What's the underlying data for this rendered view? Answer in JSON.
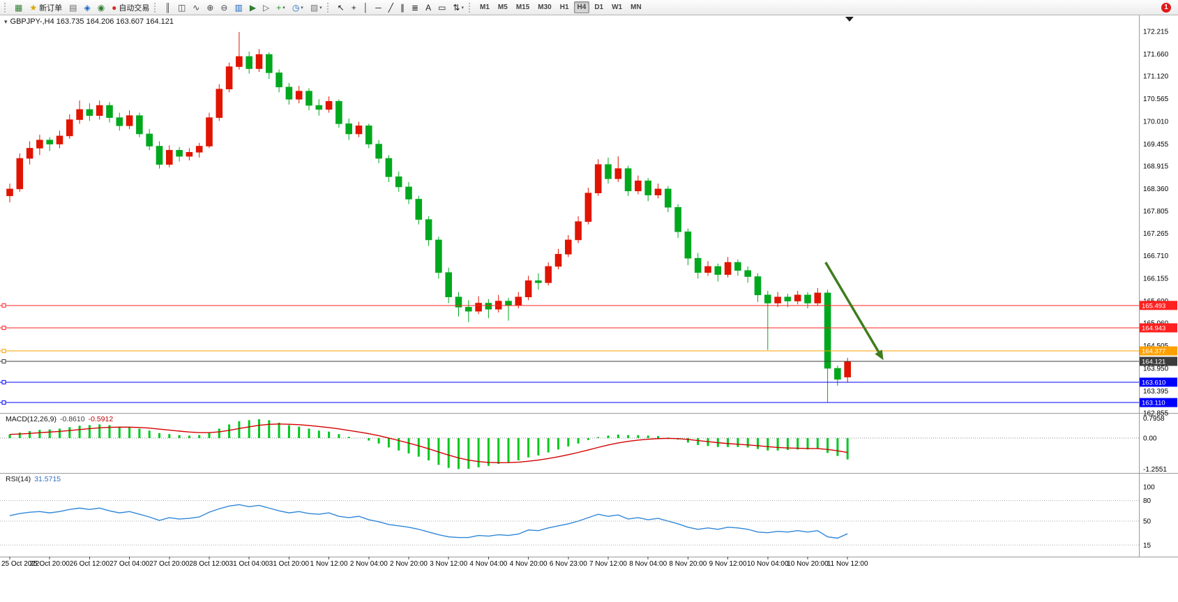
{
  "toolbar": {
    "main_icons": [
      {
        "name": "new-chart-icon",
        "glyph": "▦",
        "color": "#2e7d32"
      },
      {
        "name": "new-order-button",
        "glyph": "★",
        "color": "#d9a400",
        "label": "新订单"
      },
      {
        "name": "profiles-icon",
        "glyph": "▤",
        "color": "#666666"
      },
      {
        "name": "market-watch-icon",
        "glyph": "◈",
        "color": "#1565c0"
      },
      {
        "name": "navigator-icon",
        "glyph": "◉",
        "color": "#2e7d32"
      },
      {
        "name": "autotrade-button",
        "glyph": "●",
        "color": "#d32f2f",
        "label": "自动交易"
      }
    ],
    "chart_icons": [
      {
        "name": "bar-chart-icon",
        "glyph": "║",
        "color": "#444444"
      },
      {
        "name": "candlestick-icon",
        "glyph": "◫",
        "color": "#444444"
      },
      {
        "name": "line-chart-icon",
        "glyph": "∿",
        "color": "#444444"
      },
      {
        "name": "zoom-in-icon",
        "glyph": "⊕",
        "color": "#444444"
      },
      {
        "name": "zoom-out-icon",
        "glyph": "⊖",
        "color": "#444444"
      },
      {
        "name": "tile-windows-icon",
        "glyph": "▥",
        "color": "#1565c0"
      },
      {
        "name": "auto-scroll-icon",
        "glyph": "▶",
        "color": "#2e7d32"
      },
      {
        "name": "chart-shift-icon",
        "glyph": "▷",
        "color": "#555555"
      },
      {
        "name": "indicators-icon",
        "glyph": "+",
        "color": "#1a9a1a",
        "caret": true
      },
      {
        "name": "periods-icon",
        "glyph": "◷",
        "color": "#1565c0",
        "caret": true
      },
      {
        "name": "templates-icon",
        "glyph": "▧",
        "color": "#777777",
        "caret": true
      }
    ],
    "draw_icons": [
      {
        "name": "cursor-icon",
        "glyph": "↖",
        "color": "#222222"
      },
      {
        "name": "crosshair-icon",
        "glyph": "+",
        "color": "#222222"
      },
      {
        "name": "vertical-line-icon",
        "glyph": "│",
        "color": "#222222"
      },
      {
        "name": "horizontal-line-icon",
        "glyph": "─",
        "color": "#222222"
      },
      {
        "name": "trendline-icon",
        "glyph": "╱",
        "color": "#222222"
      },
      {
        "name": "equidistant-channel-icon",
        "glyph": "∥",
        "color": "#222222"
      },
      {
        "name": "fibonacci-icon",
        "glyph": "≣",
        "color": "#222222"
      },
      {
        "name": "text-icon",
        "glyph": "A",
        "color": "#222222"
      },
      {
        "name": "text-label-icon",
        "glyph": "▭",
        "color": "#222222"
      },
      {
        "name": "arrows-tool-icon",
        "glyph": "⇅",
        "color": "#222222",
        "caret": true
      }
    ],
    "timeframes": [
      "M1",
      "M5",
      "M15",
      "M30",
      "H1",
      "H4",
      "D1",
      "W1",
      "MN"
    ],
    "active_timeframe": "H4",
    "notification_badge": "1"
  },
  "chart": {
    "title": "GBPJPY-,H4 163.735 164.206 163.607 164.121",
    "symbol": "GBPJPY-",
    "period": "H4",
    "one_click_glyph": "▾",
    "ohlc_display": {
      "open": "163.735",
      "high": "164.206",
      "low": "163.607",
      "close": "164.121"
    }
  },
  "macd_panel": {
    "label": "MACD(12,26,9)",
    "value_main": "-0.8610",
    "value_signal": "-0.5912"
  },
  "rsi_panel": {
    "label": "RSI(14)",
    "value": "31.5715"
  },
  "chart_data": {
    "type": "candlestick",
    "symbol": "GBPJPY-",
    "timeframe": "H4",
    "note": "red candles = bullish, green candles = bearish (red-up/green-down color convention)",
    "price_range": {
      "min": 162.855,
      "max": 172.215
    },
    "price_axis_labels": [
      "172.215",
      "171.660",
      "171.120",
      "170.565",
      "170.010",
      "169.455",
      "168.915",
      "168.360",
      "167.805",
      "167.265",
      "166.710",
      "166.155",
      "165.600",
      "165.060",
      "164.505",
      "163.950",
      "163.395",
      "162.855"
    ],
    "x_labels": [
      "25 Oct 2022",
      "25 Oct 20:00",
      "26 Oct 12:00",
      "27 Oct 04:00",
      "27 Oct 20:00",
      "28 Oct 12:00",
      "31 Oct 04:00",
      "31 Oct 20:00",
      "1 Nov 12:00",
      "2 Nov 04:00",
      "2 Nov 20:00",
      "3 Nov 12:00",
      "4 Nov 04:00",
      "4 Nov 20:00",
      "6 Nov 23:00",
      "7 Nov 12:00",
      "8 Nov 04:00",
      "8 Nov 20:00",
      "9 Nov 12:00",
      "10 Nov 04:00",
      "10 Nov 20:00",
      "11 Nov 12:00"
    ],
    "x_tick_step": 4,
    "candles": [
      [
        168.18,
        168.48,
        168.02,
        168.35
      ],
      [
        168.35,
        169.22,
        168.28,
        169.1
      ],
      [
        169.1,
        169.52,
        168.95,
        169.35
      ],
      [
        169.35,
        169.68,
        169.18,
        169.55
      ],
      [
        169.55,
        169.62,
        169.28,
        169.45
      ],
      [
        169.45,
        169.78,
        169.35,
        169.65
      ],
      [
        169.65,
        170.18,
        169.58,
        170.05
      ],
      [
        170.05,
        170.52,
        169.95,
        170.3
      ],
      [
        170.3,
        170.45,
        170.02,
        170.15
      ],
      [
        170.15,
        170.52,
        170.05,
        170.4
      ],
      [
        170.4,
        170.48,
        169.98,
        170.1
      ],
      [
        170.1,
        170.22,
        169.78,
        169.9
      ],
      [
        169.9,
        170.28,
        169.82,
        170.15
      ],
      [
        170.15,
        170.22,
        169.62,
        169.7
      ],
      [
        169.7,
        169.82,
        169.3,
        169.4
      ],
      [
        169.4,
        169.52,
        168.85,
        168.95
      ],
      [
        168.95,
        169.42,
        168.88,
        169.3
      ],
      [
        169.3,
        169.38,
        169.02,
        169.15
      ],
      [
        169.15,
        169.35,
        169.05,
        169.25
      ],
      [
        169.25,
        169.48,
        169.12,
        169.4
      ],
      [
        169.4,
        170.22,
        169.35,
        170.1
      ],
      [
        170.1,
        170.92,
        170.02,
        170.8
      ],
      [
        170.8,
        171.45,
        170.72,
        171.35
      ],
      [
        171.35,
        172.2,
        171.28,
        171.6
      ],
      [
        171.6,
        171.72,
        171.18,
        171.3
      ],
      [
        171.3,
        171.78,
        171.22,
        171.65
      ],
      [
        171.65,
        171.7,
        171.05,
        171.2
      ],
      [
        171.2,
        171.28,
        170.72,
        170.85
      ],
      [
        170.85,
        170.95,
        170.42,
        170.55
      ],
      [
        170.55,
        170.88,
        170.45,
        170.75
      ],
      [
        170.75,
        170.82,
        170.28,
        170.4
      ],
      [
        170.4,
        170.55,
        170.15,
        170.3
      ],
      [
        170.3,
        170.62,
        170.22,
        170.5
      ],
      [
        170.5,
        170.55,
        169.85,
        169.95
      ],
      [
        169.95,
        170.08,
        169.55,
        169.7
      ],
      [
        169.7,
        170.0,
        169.62,
        169.9
      ],
      [
        169.9,
        169.95,
        169.35,
        169.45
      ],
      [
        169.45,
        169.55,
        168.98,
        169.1
      ],
      [
        169.1,
        169.18,
        168.52,
        168.65
      ],
      [
        168.65,
        168.78,
        168.28,
        168.4
      ],
      [
        168.4,
        168.52,
        167.98,
        168.1
      ],
      [
        168.1,
        168.18,
        167.48,
        167.6
      ],
      [
        167.6,
        167.68,
        166.95,
        167.1
      ],
      [
        167.1,
        167.18,
        166.15,
        166.3
      ],
      [
        166.3,
        166.42,
        165.55,
        165.7
      ],
      [
        165.7,
        165.82,
        165.22,
        165.45
      ],
      [
        165.45,
        165.62,
        165.08,
        165.35
      ],
      [
        165.35,
        165.72,
        165.28,
        165.55
      ],
      [
        165.55,
        165.65,
        165.18,
        165.4
      ],
      [
        165.4,
        165.75,
        165.32,
        165.6
      ],
      [
        165.6,
        165.68,
        165.12,
        165.5
      ],
      [
        165.5,
        165.82,
        165.42,
        165.7
      ],
      [
        165.7,
        166.22,
        165.62,
        166.1
      ],
      [
        166.1,
        166.28,
        165.88,
        166.05
      ],
      [
        166.05,
        166.55,
        165.98,
        166.45
      ],
      [
        166.45,
        166.88,
        166.38,
        166.75
      ],
      [
        166.75,
        167.22,
        166.68,
        167.1
      ],
      [
        167.1,
        167.68,
        167.02,
        167.55
      ],
      [
        167.55,
        168.38,
        167.48,
        168.25
      ],
      [
        168.25,
        169.08,
        168.18,
        168.95
      ],
      [
        168.95,
        169.12,
        168.48,
        168.6
      ],
      [
        168.6,
        169.15,
        168.52,
        168.85
      ],
      [
        168.85,
        168.92,
        168.18,
        168.3
      ],
      [
        168.3,
        168.68,
        168.22,
        168.55
      ],
      [
        168.55,
        168.62,
        168.05,
        168.2
      ],
      [
        168.2,
        168.48,
        168.12,
        168.35
      ],
      [
        168.35,
        168.42,
        167.78,
        167.9
      ],
      [
        167.9,
        167.98,
        167.15,
        167.3
      ],
      [
        167.3,
        167.38,
        166.48,
        166.65
      ],
      [
        166.65,
        166.78,
        166.15,
        166.3
      ],
      [
        166.3,
        166.58,
        166.22,
        166.45
      ],
      [
        166.45,
        166.52,
        166.08,
        166.25
      ],
      [
        166.25,
        166.68,
        166.18,
        166.55
      ],
      [
        166.55,
        166.62,
        166.22,
        166.35
      ],
      [
        166.35,
        166.45,
        166.05,
        166.2
      ],
      [
        166.2,
        166.28,
        165.58,
        165.75
      ],
      [
        165.75,
        165.85,
        164.4,
        165.55
      ],
      [
        165.55,
        165.82,
        165.45,
        165.7
      ],
      [
        165.7,
        165.78,
        165.45,
        165.6
      ],
      [
        165.6,
        165.85,
        165.52,
        165.75
      ],
      [
        165.75,
        165.82,
        165.42,
        165.55
      ],
      [
        165.55,
        165.92,
        165.48,
        165.8
      ],
      [
        165.8,
        165.88,
        163.11,
        163.95
      ],
      [
        163.95,
        164.02,
        163.52,
        163.68
      ],
      [
        163.735,
        164.206,
        163.607,
        164.121
      ]
    ],
    "colors": {
      "bull": "#e01400",
      "bear": "#00a81e",
      "macd_hist": "#00c81e",
      "macd_signal": "#d40000",
      "rsi_line": "#2f86d8",
      "arrow": "#3e7d1c",
      "axis_text": "#000000"
    },
    "hlines": [
      {
        "value": 165.493,
        "color": "#ff2020",
        "label": "165.493"
      },
      {
        "value": 164.943,
        "color": "#ff2020",
        "label": "164.943"
      },
      {
        "value": 164.377,
        "color": "#ffa000",
        "label": "164.377"
      },
      {
        "value": 164.121,
        "color": "#3c3c3c",
        "label": "164.121",
        "role": "current-price"
      },
      {
        "value": 163.61,
        "color": "#0000ff",
        "label": "163.610"
      },
      {
        "value": 163.11,
        "color": "#0000ff",
        "label": "163.110"
      }
    ],
    "price_tags": [
      {
        "value": 165.493,
        "bg": "#ff2020",
        "fg": "#ffffff"
      },
      {
        "value": 164.943,
        "bg": "#ff2020",
        "fg": "#ffffff"
      },
      {
        "value": 164.377,
        "bg": "#ffa000",
        "fg": "#ffffff"
      },
      {
        "value": 164.121,
        "bg": "#3c3c3c",
        "fg": "#ffffff"
      },
      {
        "value": 163.61,
        "bg": "#0000ff",
        "fg": "#ffffff"
      },
      {
        "value": 163.11,
        "bg": "#0000ff",
        "fg": "#ffffff"
      }
    ],
    "arrow": {
      "from_index": 81.8,
      "from_price": 166.55,
      "to_index": 87.6,
      "to_price": 164.15
    },
    "macd": {
      "params": "12,26,9",
      "current_main": -0.861,
      "current_signal": -0.5912,
      "range": {
        "min": -1.35,
        "max": 0.9
      },
      "axis_labels": [
        "0.7958",
        "0.00",
        "-1.2551"
      ],
      "values": [
        0.15,
        0.22,
        0.28,
        0.33,
        0.35,
        0.38,
        0.44,
        0.5,
        0.52,
        0.55,
        0.52,
        0.46,
        0.44,
        0.38,
        0.3,
        0.2,
        0.16,
        0.12,
        0.1,
        0.12,
        0.22,
        0.38,
        0.55,
        0.68,
        0.72,
        0.76,
        0.72,
        0.62,
        0.52,
        0.46,
        0.38,
        0.3,
        0.26,
        0.16,
        0.05,
        0.0,
        -0.1,
        -0.22,
        -0.38,
        -0.5,
        -0.62,
        -0.75,
        -0.9,
        -1.08,
        -1.2,
        -1.25,
        -1.24,
        -1.18,
        -1.12,
        -1.04,
        -0.98,
        -0.9,
        -0.78,
        -0.7,
        -0.58,
        -0.46,
        -0.34,
        -0.22,
        -0.08,
        0.04,
        0.1,
        0.14,
        0.12,
        0.12,
        0.1,
        0.08,
        0.02,
        -0.06,
        -0.18,
        -0.28,
        -0.32,
        -0.36,
        -0.36,
        -0.36,
        -0.38,
        -0.44,
        -0.5,
        -0.5,
        -0.48,
        -0.46,
        -0.46,
        -0.44,
        -0.6,
        -0.72,
        -0.861
      ]
    },
    "rsi": {
      "period": 14,
      "current": 31.5715,
      "levels": [
        80,
        50,
        15
      ],
      "axis_labels": [
        "100",
        "80",
        "50",
        "15"
      ],
      "range": {
        "min": 0,
        "max": 100
      },
      "values": [
        58,
        61,
        63,
        64,
        62,
        64,
        67,
        69,
        67,
        69,
        65,
        62,
        64,
        60,
        56,
        51,
        55,
        53,
        54,
        56,
        63,
        68,
        72,
        74,
        71,
        73,
        69,
        65,
        62,
        64,
        61,
        60,
        62,
        57,
        55,
        57,
        52,
        49,
        45,
        43,
        41,
        38,
        34,
        30,
        27,
        26,
        26,
        29,
        28,
        30,
        29,
        31,
        37,
        36,
        40,
        43,
        46,
        50,
        55,
        60,
        57,
        59,
        53,
        55,
        52,
        54,
        50,
        46,
        41,
        38,
        40,
        38,
        41,
        40,
        38,
        34,
        33,
        35,
        34,
        36,
        34,
        36,
        27,
        25,
        31.57
      ]
    }
  }
}
